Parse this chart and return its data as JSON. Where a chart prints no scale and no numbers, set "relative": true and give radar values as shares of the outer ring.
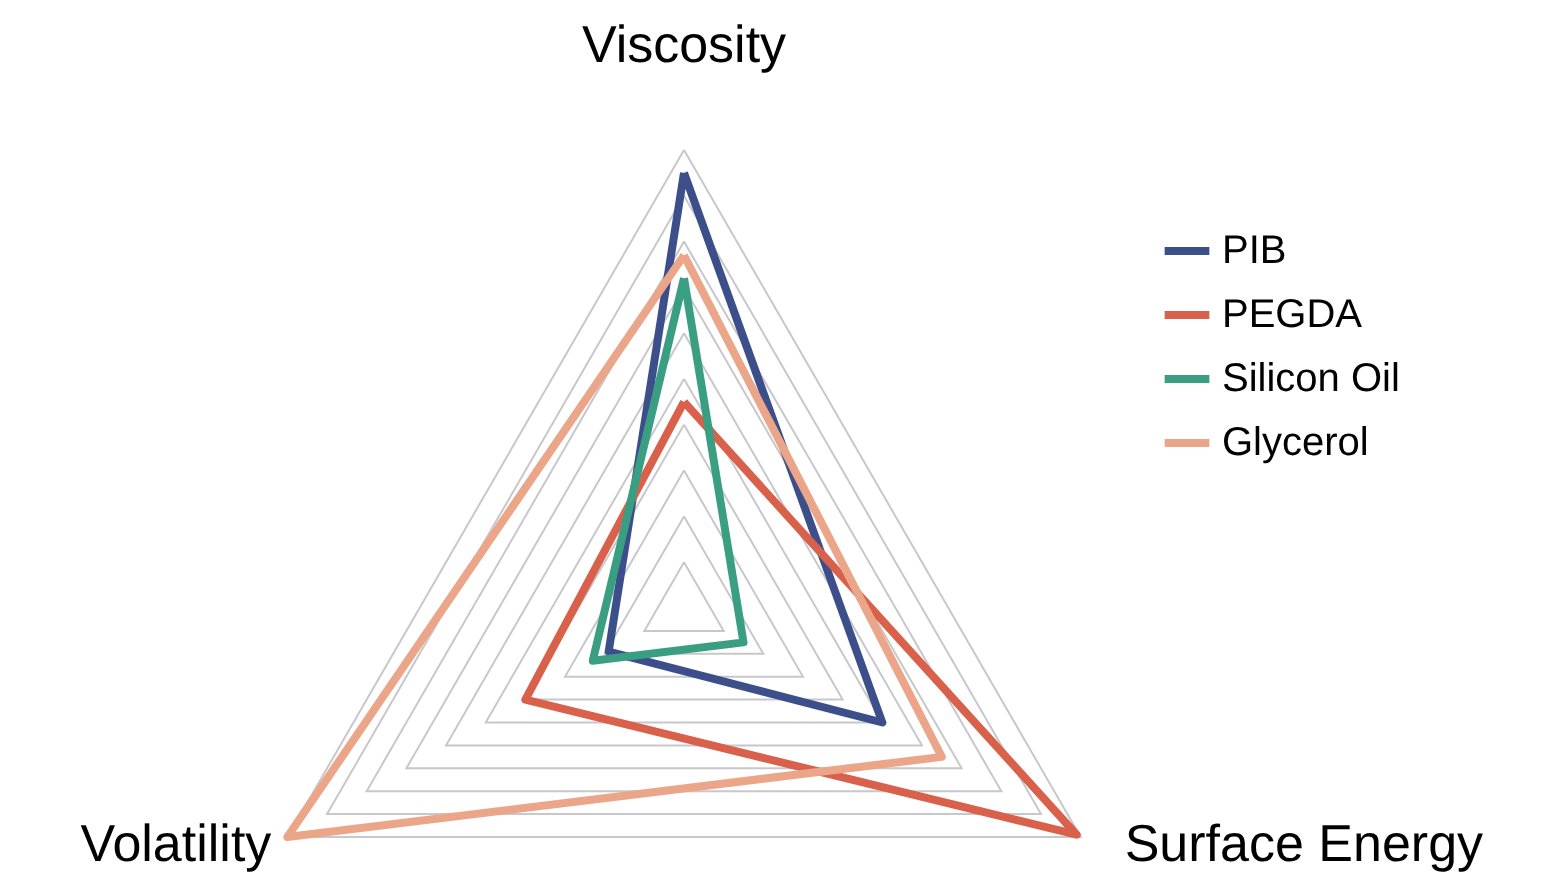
{
  "chart_data": {
    "type": "radar",
    "relative": true,
    "categories": [
      "Viscosity",
      "Surface Energy",
      "Volatility"
    ],
    "series": [
      {
        "name": "PIB",
        "color": "#3d4f8a",
        "values": [
          0.95,
          0.5,
          0.19
        ]
      },
      {
        "name": "PEGDA",
        "color": "#d9604a",
        "values": [
          0.45,
          0.99,
          0.4
        ]
      },
      {
        "name": "Silicon Oil",
        "color": "#3a9e83",
        "values": [
          0.72,
          0.15,
          0.23
        ]
      },
      {
        "name": "Glycerol",
        "color": "#eba68a",
        "values": [
          0.77,
          0.65,
          1.0
        ]
      }
    ],
    "grid": true,
    "legend": "right",
    "line_style": "solid"
  }
}
